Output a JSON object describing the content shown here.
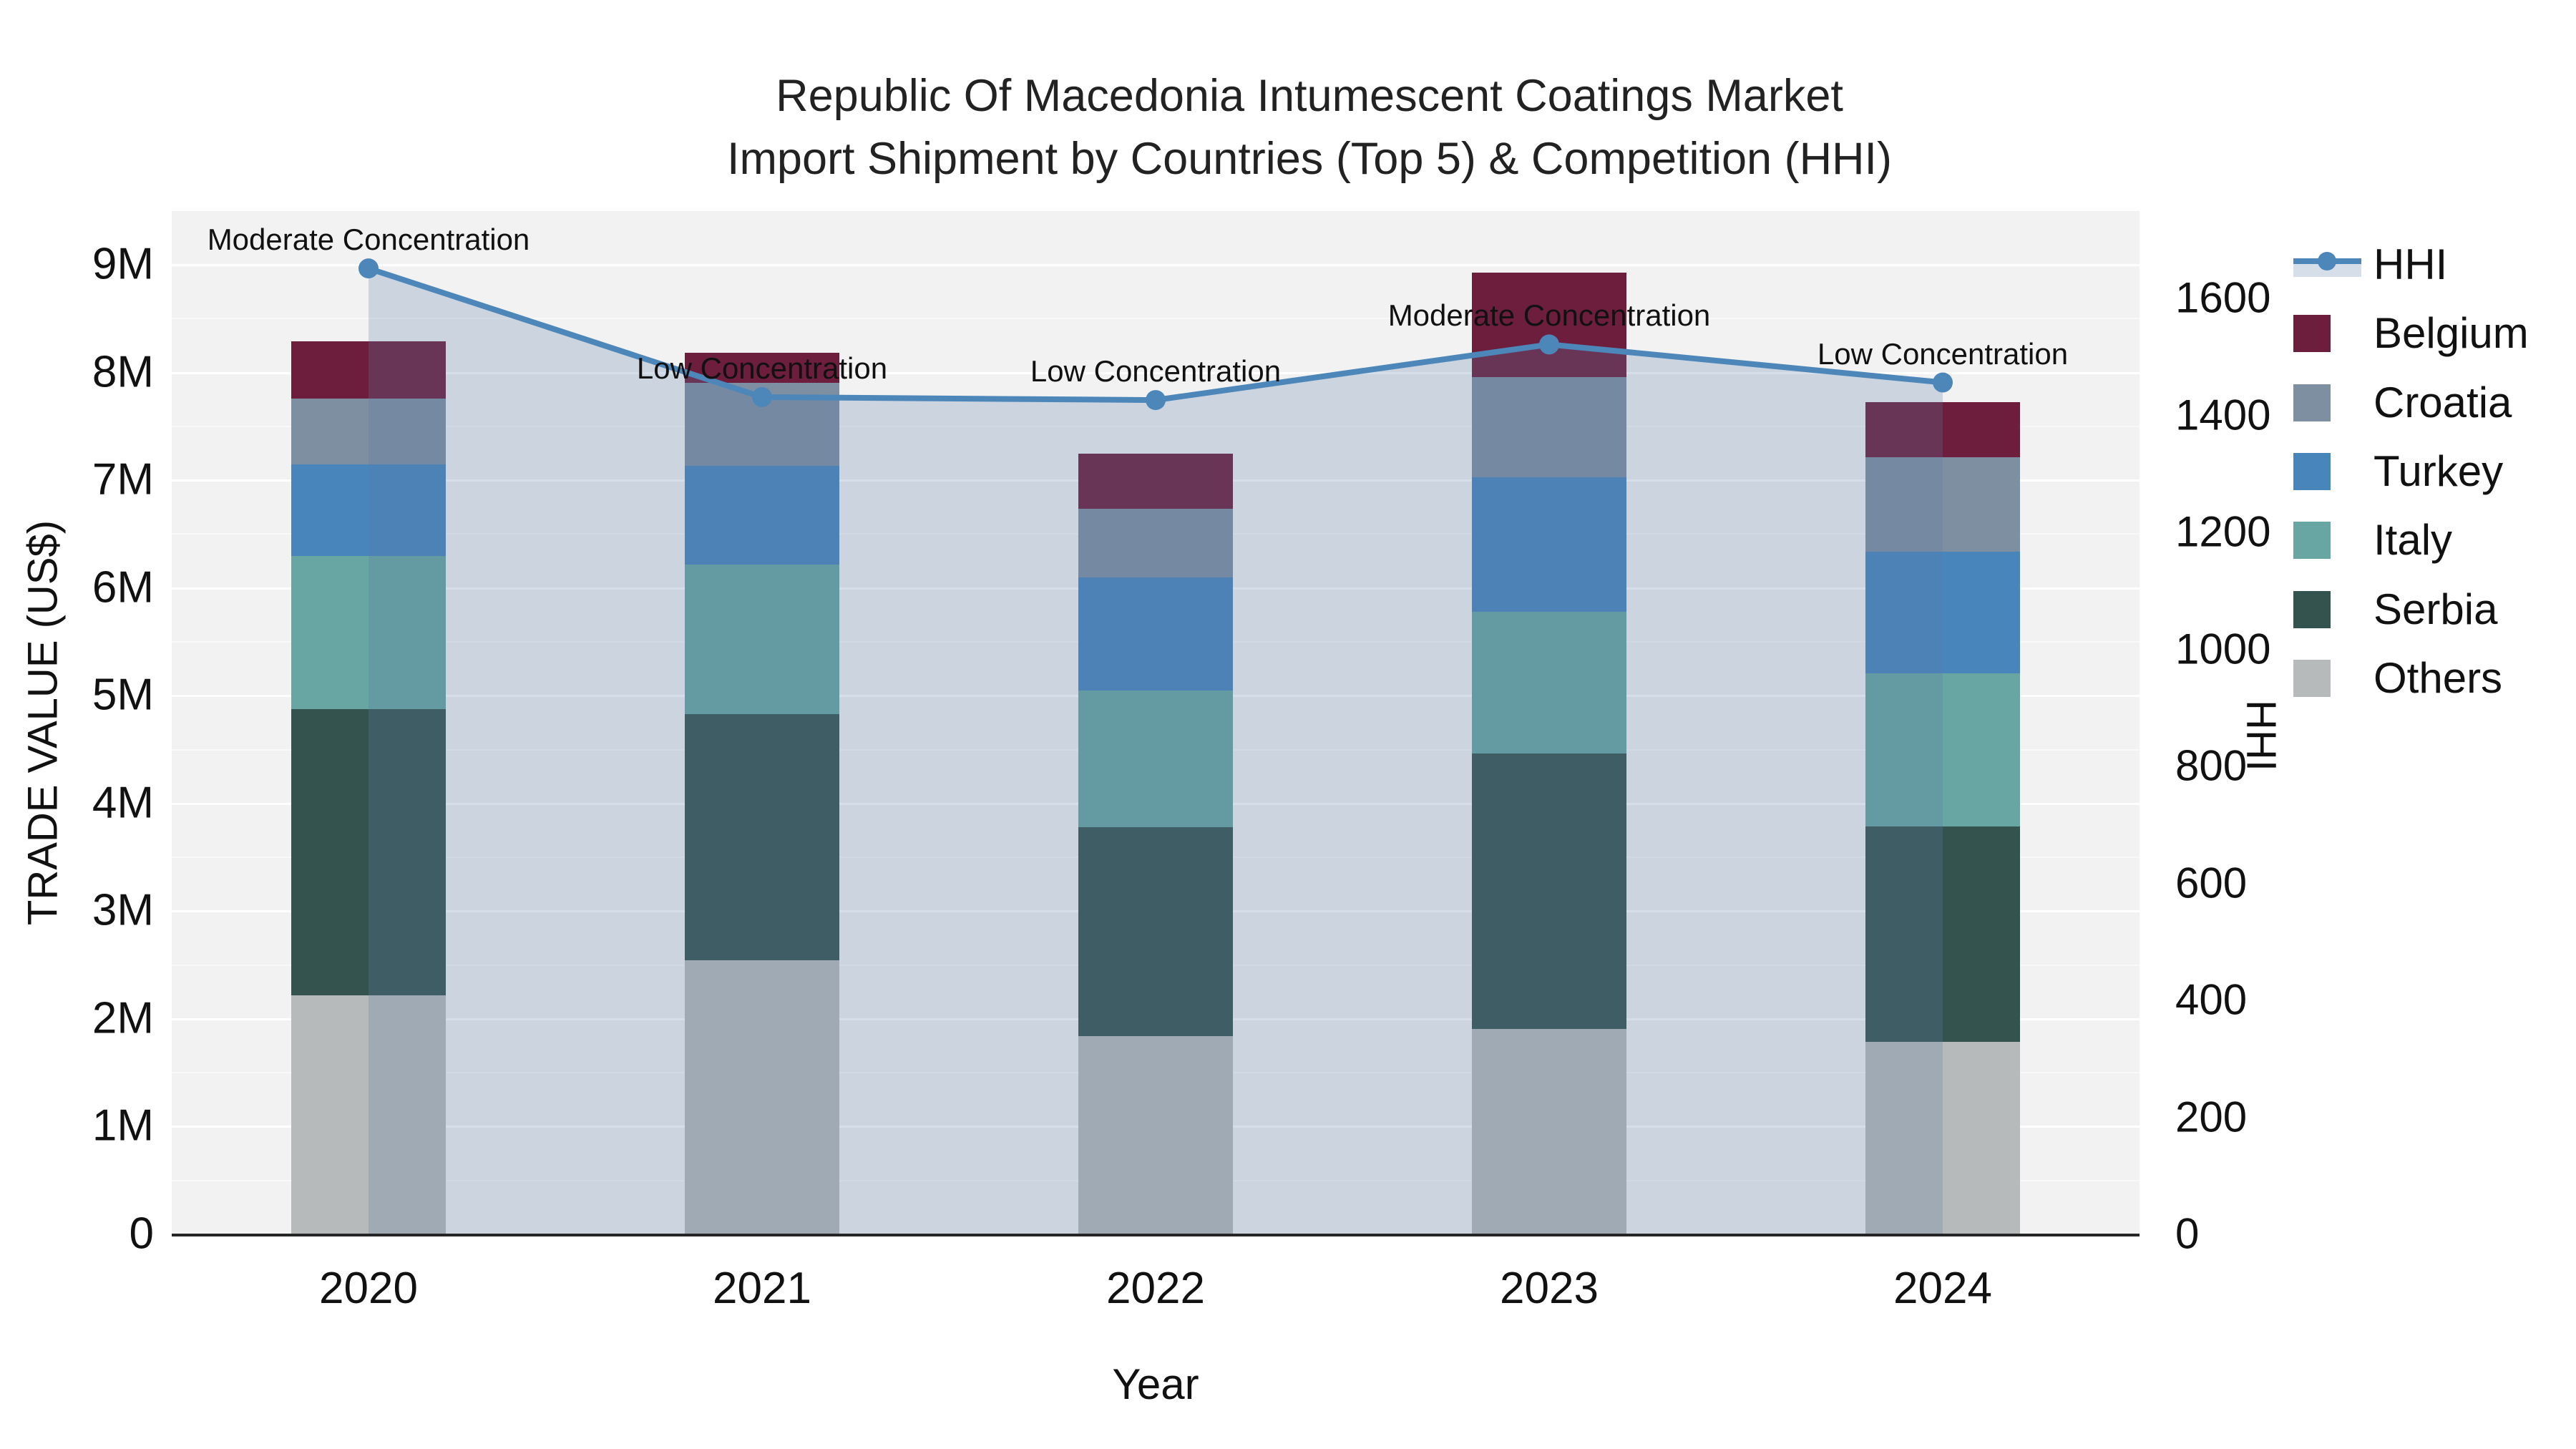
{
  "title": {
    "line1": "Republic Of Macedonia Intumescent Coatings Market",
    "line2": "Import Shipment by Countries (Top 5) & Competition (HHI)"
  },
  "axes": {
    "y_left": {
      "label": "TRADE VALUE (US$)",
      "tick_labels": [
        "0",
        "1M",
        "2M",
        "3M",
        "4M",
        "5M",
        "6M",
        "7M",
        "8M",
        "9M"
      ],
      "tick_values": [
        0,
        1,
        2,
        3,
        4,
        5,
        6,
        7,
        8,
        9
      ]
    },
    "y_right": {
      "label": "HHI",
      "tick_labels": [
        "0",
        "200",
        "400",
        "600",
        "800",
        "1000",
        "1200",
        "1400",
        "1600"
      ],
      "tick_values": [
        0,
        200,
        400,
        600,
        800,
        1000,
        1200,
        1400,
        1600
      ]
    },
    "x": {
      "label": "Year",
      "categories": [
        "2020",
        "2021",
        "2022",
        "2023",
        "2024"
      ]
    }
  },
  "legend": {
    "items": [
      {
        "label": "HHI",
        "type": "line",
        "color": "#4d87ba"
      },
      {
        "label": "Belgium",
        "type": "patch",
        "color": "#6d1e3d"
      },
      {
        "label": "Croatia",
        "type": "patch",
        "color": "#7e8fa1"
      },
      {
        "label": "Turkey",
        "type": "patch",
        "color": "#4785ba"
      },
      {
        "label": "Italy",
        "type": "patch",
        "color": "#67a6a2"
      },
      {
        "label": "Serbia",
        "type": "patch",
        "color": "#34534e"
      },
      {
        "label": "Others",
        "type": "patch",
        "color": "#b6baba"
      }
    ]
  },
  "chart_data": {
    "type": "bar+line",
    "title": "Republic Of Macedonia Intumescent Coatings Market Import Shipment by Countries (Top 5) & Competition (HHI)",
    "categories": [
      "2020",
      "2021",
      "2022",
      "2023",
      "2024"
    ],
    "bar_unit": "US$ millions",
    "stack_order_bottom_to_top": [
      "Others",
      "Serbia",
      "Italy",
      "Turkey",
      "Croatia",
      "Belgium"
    ],
    "series": [
      {
        "name": "Belgium",
        "values": [
          0.53,
          0.28,
          0.51,
          0.97,
          0.51
        ]
      },
      {
        "name": "Croatia",
        "values": [
          0.61,
          0.77,
          0.64,
          0.93,
          0.88
        ]
      },
      {
        "name": "Turkey",
        "values": [
          0.85,
          0.92,
          1.05,
          1.25,
          1.13
        ]
      },
      {
        "name": "Italy",
        "values": [
          1.42,
          1.39,
          1.27,
          1.31,
          1.42
        ]
      },
      {
        "name": "Serbia",
        "values": [
          2.66,
          2.28,
          1.94,
          2.56,
          2.0
        ]
      },
      {
        "name": "Others",
        "values": [
          2.21,
          2.54,
          1.83,
          1.9,
          1.78
        ]
      }
    ],
    "bar_totals": [
      8.28,
      8.18,
      7.24,
      8.92,
      7.72
    ],
    "line_series": {
      "name": "HHI",
      "values": [
        1650,
        1430,
        1425,
        1520,
        1455
      ],
      "axis": "right"
    },
    "annotations": [
      {
        "category": "2020",
        "text": "Moderate Concentration"
      },
      {
        "category": "2021",
        "text": "Low Concentration"
      },
      {
        "category": "2022",
        "text": "Low Concentration"
      },
      {
        "category": "2023",
        "text": "Moderate Concentration"
      },
      {
        "category": "2024",
        "text": "Low Concentration"
      }
    ],
    "ylim_left": [
      0,
      9.49
    ],
    "ylim_right": [
      0,
      1750
    ],
    "grid": "horizontal, every 0.5M",
    "legend_position": "right"
  },
  "colors": {
    "figure_bg": "#ffffff",
    "plot_bg": "#f2f2f2",
    "hhi_line": "#4d87ba",
    "hhi_fill": "rgba(90,124,166,0.25)",
    "legend_band": "#d6dee9",
    "spine": "#262626",
    "Belgium": "#6d1e3d",
    "Croatia": "#7e8fa1",
    "Turkey": "#4785ba",
    "Italy": "#67a6a2",
    "Serbia": "#34534e",
    "Others": "#b6baba"
  }
}
